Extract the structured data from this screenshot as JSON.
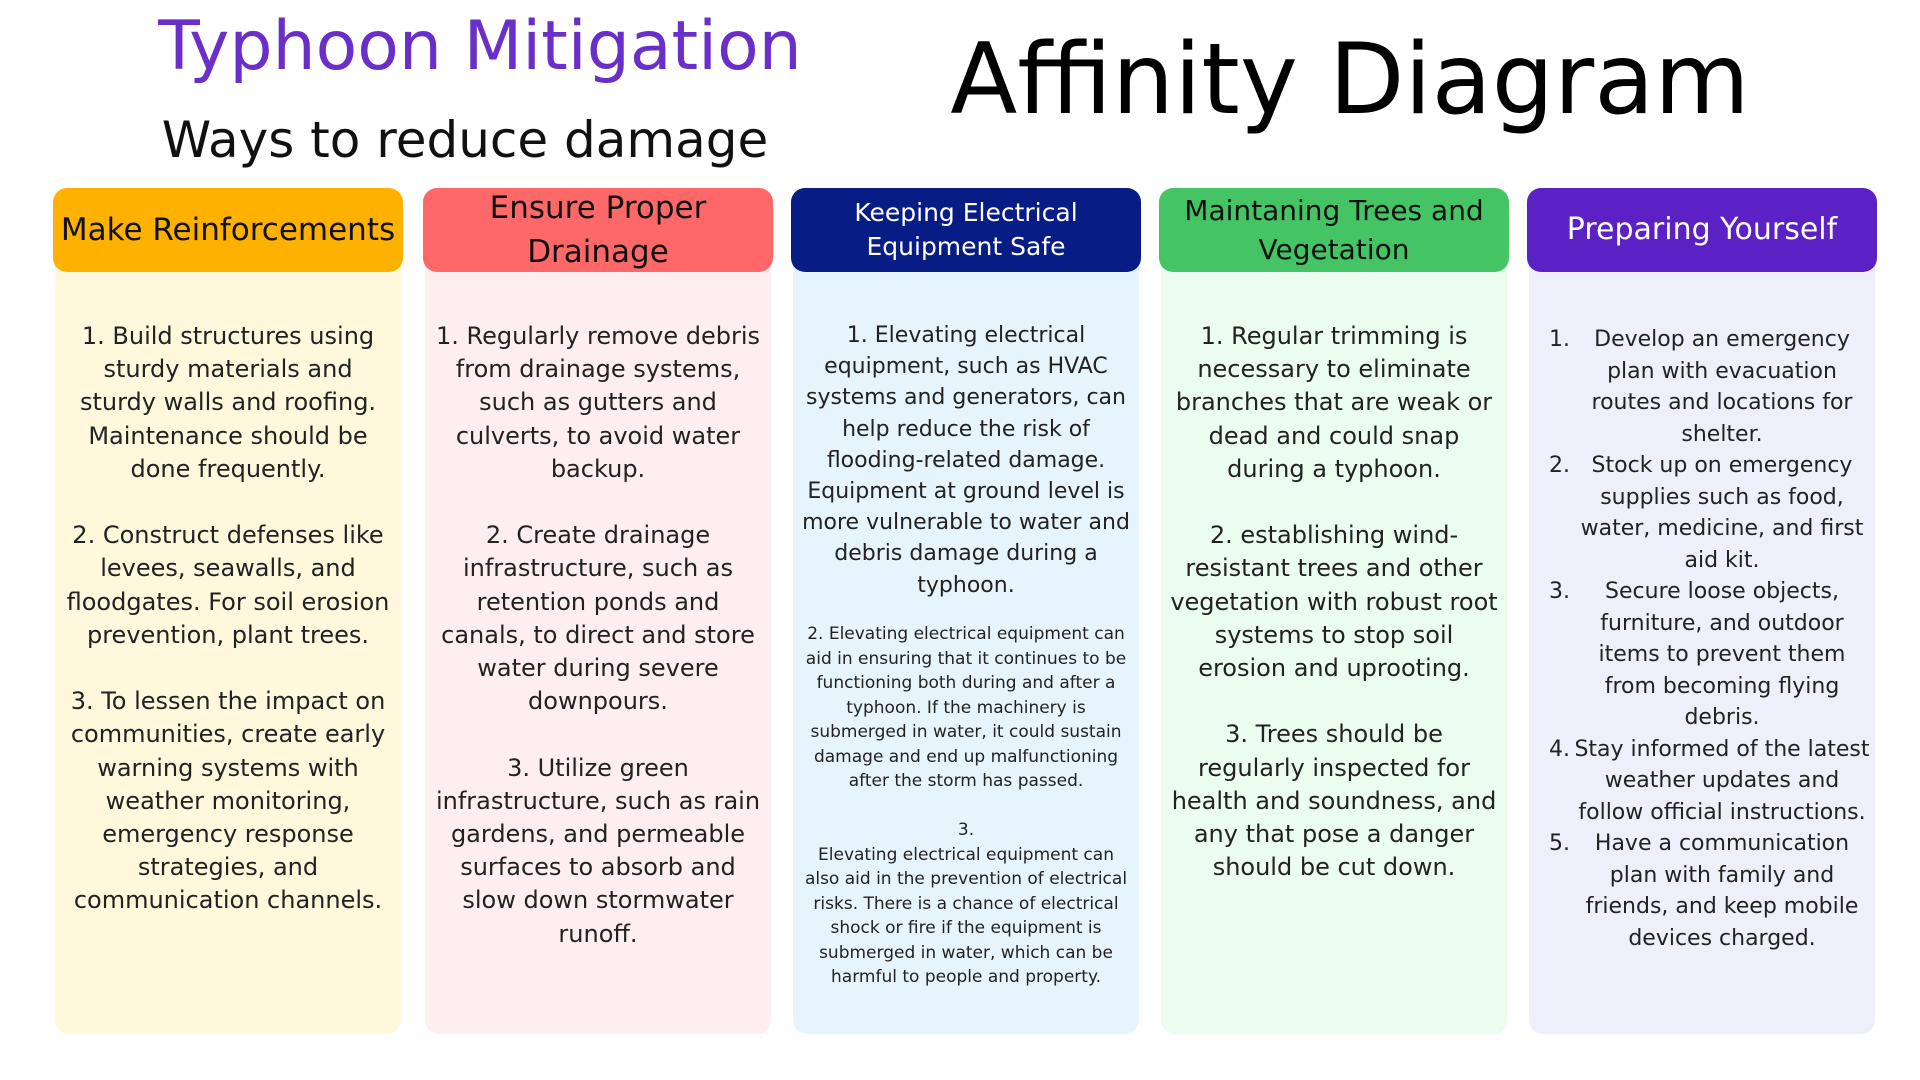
{
  "titles": {
    "main": "Typhoon Mitigation",
    "sub": "Ways to reduce damage",
    "right": "Affinity Diagram"
  },
  "colors": {
    "title_purple": "#6a2fc9",
    "col1_header": "#ffb100",
    "col1_body": "#fff8dc",
    "col2_header": "#ff6868",
    "col2_body": "#ffeef0",
    "col3_header": "#071d85",
    "col3_body": "#e6f5fd",
    "col4_header": "#45c465",
    "col4_body": "#ebfdee",
    "col5_header": "#5b21c5",
    "col5_body": "#efeefb"
  },
  "columns": [
    {
      "header": "Make Reinforcements",
      "text": "1. Build structures using sturdy materials and sturdy walls and roofing. Maintenance should be done frequently.\n\n2. Construct defenses like levees, seawalls, and floodgates. For soil erosion prevention, plant trees.\n\n3. To lessen the impact on communities, create early warning systems with weather monitoring, emergency response strategies, and communication channels."
    },
    {
      "header": "Ensure Proper Drainage",
      "text": "1. Regularly remove debris from drainage systems, such as gutters and culverts, to avoid water backup.\n\n2. Create drainage infrastructure, such as retention ponds and canals, to direct and store water during severe downpours.\n\n3. Utilize green infrastructure, such as rain gardens, and permeable surfaces to absorb and slow down stormwater runoff."
    },
    {
      "header": "Keeping Electrical Equipment Safe",
      "text_large": "1. Elevating electrical equipment, such as HVAC systems and generators, can help reduce the risk of flooding-related damage. Equipment at ground level is more vulnerable to water and debris damage during a typhoon.",
      "text_small": "2. Elevating electrical equipment can aid in ensuring that it continues to be functioning both during and after a typhoon. If the machinery is submerged in water, it could sustain damage and end up malfunctioning after the storm has passed.\n\n3.\nElevating electrical equipment can also aid in the prevention of electrical risks. There is a chance of electrical shock or fire if the equipment is submerged in water, which can be harmful to people and property."
    },
    {
      "header": "Maintaning Trees and Vegetation",
      "text": "1. Regular trimming is necessary to eliminate branches that are weak or dead and could snap during a typhoon.\n\n2. establishing wind-resistant trees and other vegetation with robust root systems to stop soil erosion and uprooting.\n\n3. Trees should be regularly inspected for health and soundness, and any that pose a danger should be cut down."
    },
    {
      "header": "Preparing Yourself",
      "items": [
        {
          "num": "1.",
          "text": "Develop an emergency plan with evacuation routes and locations for shelter."
        },
        {
          "num": "2.",
          "text": "Stock up on emergency supplies such as food, water, medicine, and first aid kit."
        },
        {
          "num": "3.",
          "text": "Secure loose objects, furniture, and outdoor items to prevent them from becoming flying debris."
        },
        {
          "num": "4.",
          "text": "Stay informed of the latest weather updates and follow official instructions."
        },
        {
          "num": "5.",
          "text": "Have a communication plan with family and friends, and keep mobile devices charged."
        }
      ]
    }
  ]
}
